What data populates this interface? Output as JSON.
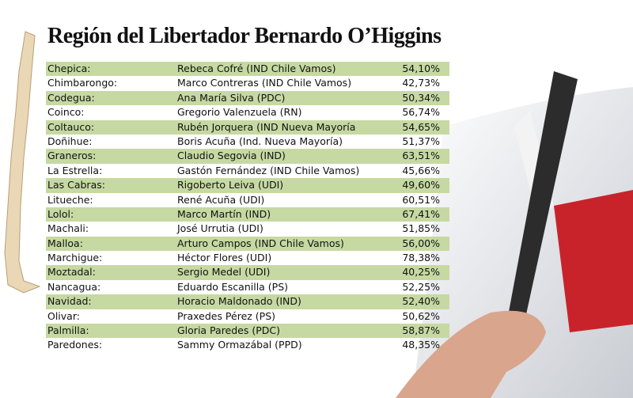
{
  "header": {
    "title": "Región del Libertador Bernardo O’Higgins"
  },
  "table": {
    "rows": [
      [
        "Chepica:",
        "Rebeca Cofré (IND Chile Vamos)",
        "54,10%"
      ],
      [
        "Chimbarongo:",
        "Marco Contreras (IND Chile Vamos)",
        "42,73%"
      ],
      [
        "Codegua:",
        "Ana María Silva (PDC)",
        "50,34%"
      ],
      [
        "Coinco:",
        "Gregorio Valenzuela (RN)",
        "56,74%"
      ],
      [
        "Coltauco:",
        "Rubén Jorquera (IND Nueva Mayoría",
        "54,65%"
      ],
      [
        "Doñihue:",
        "Boris Acuña (Ind. Nueva Mayoría)",
        "51,37%"
      ],
      [
        "Graneros:",
        "Claudio Segovia (IND)",
        "63,51%"
      ],
      [
        "La Estrella:",
        "Gastón Fernández (IND Chile Vamos)",
        "45,66%"
      ],
      [
        "Las Cabras:",
        "Rigoberto Leiva (UDI)",
        "49,60%"
      ],
      [
        "Litueche:",
        "René Acuña (UDI)",
        "60,51%"
      ],
      [
        "Lolol:",
        "Marco Martín (IND)",
        "67,41%"
      ],
      [
        "Machali:",
        "José Urrutia (UDI)",
        "51,85%"
      ],
      [
        "Malloa:",
        "Arturo Campos (IND Chile Vamos)",
        "56,00%"
      ],
      [
        "Marchigue:",
        "Héctor Flores (UDI)",
        "78,38%"
      ],
      [
        "Moztadal:",
        "Sergio Medel (UDI)",
        "40,25%"
      ],
      [
        "Nancagua:",
        "Eduardo Escanilla (PS)",
        "52,25%"
      ],
      [
        "Navidad:",
        "Horacio Maldonado (IND)",
        "52,40%"
      ],
      [
        "Olivar:",
        "Praxedes Pérez (PS)",
        "50,62%"
      ],
      [
        "Palmilla:",
        "Gloria Paredes (PDC)",
        "58,87%"
      ],
      [
        "Paredones:",
        "Sammy Ormazábal (PPD)",
        "48,35%"
      ]
    ]
  }
}
